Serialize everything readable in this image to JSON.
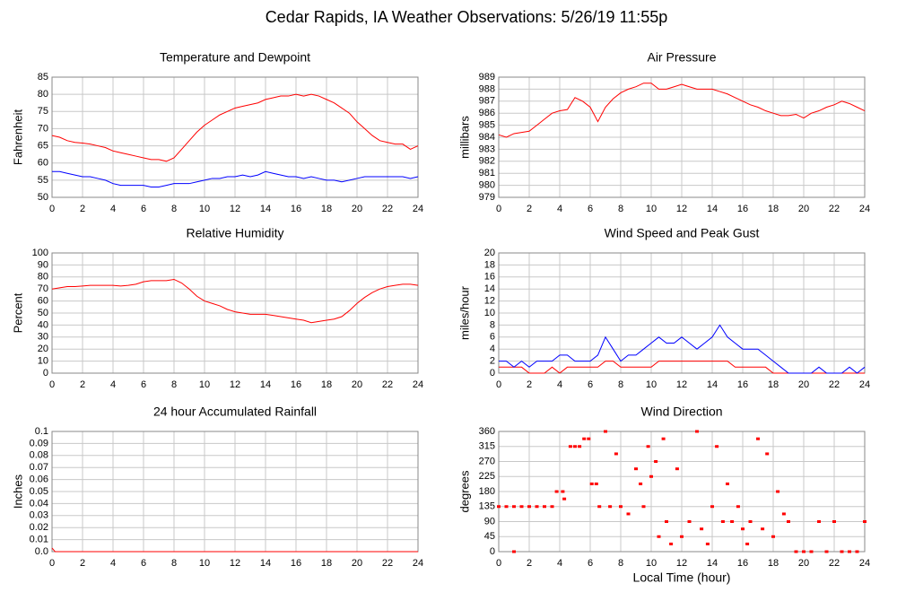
{
  "title": "Cedar Rapids, IA Weather Observations: 5/26/19 11:55p",
  "chart_data": [
    {
      "type": "line",
      "title": "Temperature and Dewpoint",
      "ylabel": "Fahrenheit",
      "xlim": [
        0,
        24
      ],
      "xticks": [
        0,
        2,
        4,
        6,
        8,
        10,
        12,
        14,
        16,
        18,
        20,
        22,
        24
      ],
      "ylim": [
        50,
        85
      ],
      "yticks": [
        50,
        55,
        60,
        65,
        70,
        75,
        80,
        85
      ],
      "grid": true,
      "x": [
        0,
        0.5,
        1,
        1.5,
        2,
        2.5,
        3,
        3.5,
        4,
        4.5,
        5,
        5.5,
        6,
        6.5,
        7,
        7.5,
        8,
        8.5,
        9,
        9.5,
        10,
        10.5,
        11,
        11.5,
        12,
        12.5,
        13,
        13.5,
        14,
        14.5,
        15,
        15.5,
        16,
        16.5,
        17,
        17.5,
        18,
        18.5,
        19,
        19.5,
        20,
        20.5,
        21,
        21.5,
        22,
        22.5,
        23,
        23.5,
        24
      ],
      "series": [
        {
          "color": "#ff0000",
          "values": [
            68,
            67.5,
            66.5,
            66,
            65.8,
            65.5,
            65,
            64.5,
            63.5,
            63,
            62.5,
            62,
            61.5,
            61,
            61,
            60.5,
            61.5,
            64,
            66.5,
            69,
            71,
            72.5,
            74,
            75,
            76,
            76.5,
            77,
            77.5,
            78.5,
            79,
            79.5,
            79.5,
            80,
            79.5,
            80,
            79.5,
            78.5,
            77.5,
            76,
            74.5,
            72,
            70,
            68,
            66.5,
            66,
            65.5,
            65.5,
            64,
            65
          ]
        },
        {
          "color": "#0000ff",
          "values": [
            57.5,
            57.5,
            57,
            56.5,
            56,
            56,
            55.5,
            55,
            54,
            53.5,
            53.5,
            53.5,
            53.5,
            53,
            53,
            53.5,
            54,
            54,
            54,
            54.5,
            55,
            55.5,
            55.5,
            56,
            56,
            56.5,
            56,
            56.5,
            57.5,
            57,
            56.5,
            56,
            56,
            55.5,
            56,
            55.5,
            55,
            55,
            54.5,
            55,
            55.5,
            56,
            56,
            56,
            56,
            56,
            56,
            55.5,
            56
          ]
        }
      ]
    },
    {
      "type": "line",
      "title": "Air Pressure",
      "ylabel": "millibars",
      "xlim": [
        0,
        24
      ],
      "xticks": [
        0,
        2,
        4,
        6,
        8,
        10,
        12,
        14,
        16,
        18,
        20,
        22,
        24
      ],
      "ylim": [
        979,
        989
      ],
      "yticks": [
        979,
        980,
        981,
        982,
        983,
        984,
        985,
        986,
        987,
        988,
        989
      ],
      "grid": true,
      "x": [
        0,
        0.5,
        1,
        1.5,
        2,
        2.5,
        3,
        3.5,
        4,
        4.5,
        5,
        5.5,
        6,
        6.5,
        7,
        7.5,
        8,
        8.5,
        9,
        9.5,
        10,
        10.5,
        11,
        11.5,
        12,
        12.5,
        13,
        13.5,
        14,
        14.5,
        15,
        15.5,
        16,
        16.5,
        17,
        17.5,
        18,
        18.5,
        19,
        19.5,
        20,
        20.5,
        21,
        21.5,
        22,
        22.5,
        23,
        23.5,
        24
      ],
      "series": [
        {
          "color": "#ff0000",
          "values": [
            984.2,
            984,
            984.3,
            984.4,
            984.5,
            985,
            985.5,
            986,
            986.2,
            986.3,
            987.3,
            987,
            986.5,
            985.3,
            986.5,
            987.2,
            987.7,
            988,
            988.2,
            988.5,
            988.5,
            988,
            988,
            988.2,
            988.4,
            988.2,
            988,
            988,
            988,
            987.8,
            987.6,
            987.3,
            987,
            986.7,
            986.5,
            986.2,
            986,
            985.8,
            985.8,
            985.9,
            985.6,
            986,
            986.2,
            986.5,
            986.7,
            987,
            986.8,
            986.5,
            986.2
          ]
        }
      ]
    },
    {
      "type": "line",
      "title": "Relative Humidity",
      "ylabel": "Percent",
      "xlim": [
        0,
        24
      ],
      "xticks": [
        0,
        2,
        4,
        6,
        8,
        10,
        12,
        14,
        16,
        18,
        20,
        22,
        24
      ],
      "ylim": [
        0,
        100
      ],
      "yticks": [
        0,
        10,
        20,
        30,
        40,
        50,
        60,
        70,
        80,
        90,
        100
      ],
      "grid": true,
      "x": [
        0,
        0.5,
        1,
        1.5,
        2,
        2.5,
        3,
        3.5,
        4,
        4.5,
        5,
        5.5,
        6,
        6.5,
        7,
        7.5,
        8,
        8.5,
        9,
        9.5,
        10,
        10.5,
        11,
        11.5,
        12,
        12.5,
        13,
        13.5,
        14,
        14.5,
        15,
        15.5,
        16,
        16.5,
        17,
        17.5,
        18,
        18.5,
        19,
        19.5,
        20,
        20.5,
        21,
        21.5,
        22,
        22.5,
        23,
        23.5,
        24
      ],
      "series": [
        {
          "color": "#ff0000",
          "values": [
            70,
            71,
            72,
            72,
            72.5,
            73,
            73,
            73,
            73,
            72.5,
            73,
            74,
            76,
            77,
            77,
            77,
            78,
            75,
            70,
            64,
            60,
            58,
            56,
            53,
            51,
            50,
            49,
            49,
            49,
            48,
            47,
            46,
            45,
            44,
            42,
            43,
            44,
            45,
            47,
            52,
            58,
            63,
            67,
            70,
            72,
            73,
            74,
            74,
            73
          ]
        }
      ]
    },
    {
      "type": "line",
      "title": "Wind Speed and Peak Gust",
      "ylabel": "miles/hour",
      "xlim": [
        0,
        24
      ],
      "xticks": [
        0,
        2,
        4,
        6,
        8,
        10,
        12,
        14,
        16,
        18,
        20,
        22,
        24
      ],
      "ylim": [
        0,
        20
      ],
      "yticks": [
        0,
        2,
        4,
        6,
        8,
        10,
        12,
        14,
        16,
        18,
        20
      ],
      "grid": true,
      "x": [
        0,
        0.5,
        1,
        1.5,
        2,
        2.5,
        3,
        3.5,
        4,
        4.5,
        5,
        5.5,
        6,
        6.5,
        7,
        7.5,
        8,
        8.5,
        9,
        9.5,
        10,
        10.5,
        11,
        11.5,
        12,
        12.5,
        13,
        13.5,
        14,
        14.5,
        15,
        15.5,
        16,
        16.5,
        17,
        17.5,
        18,
        18.5,
        19,
        19.5,
        20,
        20.5,
        21,
        21.5,
        22,
        22.5,
        23,
        23.5,
        24
      ],
      "series": [
        {
          "color": "#ff0000",
          "values": [
            1,
            1,
            1,
            1,
            0,
            0,
            0,
            1,
            0,
            1,
            1,
            1,
            1,
            1,
            2,
            2,
            1,
            1,
            1,
            1,
            1,
            2,
            2,
            2,
            2,
            2,
            2,
            2,
            2,
            2,
            2,
            1,
            1,
            1,
            1,
            1,
            0,
            0,
            0,
            0,
            0,
            0,
            0,
            0,
            0,
            0,
            0,
            0,
            0
          ]
        },
        {
          "color": "#0000ff",
          "values": [
            2,
            2,
            1,
            2,
            1,
            2,
            2,
            2,
            3,
            3,
            2,
            2,
            2,
            3,
            6,
            4,
            2,
            3,
            3,
            4,
            5,
            6,
            5,
            5,
            6,
            5,
            4,
            5,
            6,
            8,
            6,
            5,
            4,
            4,
            4,
            3,
            2,
            1,
            0,
            0,
            0,
            0,
            1,
            0,
            0,
            0,
            1,
            0,
            1
          ]
        }
      ]
    },
    {
      "type": "line",
      "title": "24 hour Accumulated Rainfall",
      "ylabel": "Inches",
      "xlim": [
        0,
        24
      ],
      "xticks": [
        0,
        2,
        4,
        6,
        8,
        10,
        12,
        14,
        16,
        18,
        20,
        22,
        24
      ],
      "ylim": [
        0,
        0.1
      ],
      "yticks": [
        {
          "value": 0,
          "label": "0.0"
        },
        0.01,
        0.02,
        0.03,
        0.04,
        0.05,
        0.06,
        0.07,
        0.08,
        0.09,
        0.1
      ],
      "grid": true,
      "x": [
        0,
        0.2,
        24
      ],
      "series": [
        {
          "color": "#ff0000",
          "values": [
            0.003,
            0,
            0
          ]
        }
      ]
    },
    {
      "type": "scatter",
      "title": "Wind Direction",
      "ylabel": "degrees",
      "xlabel": "Local Time (hour)",
      "xlim": [
        0,
        24
      ],
      "xticks": [
        0,
        2,
        4,
        6,
        8,
        10,
        12,
        14,
        16,
        18,
        20,
        22,
        24
      ],
      "ylim": [
        0,
        360
      ],
      "yticks": [
        0,
        45,
        90,
        135,
        180,
        225,
        270,
        315,
        360
      ],
      "grid": true,
      "x": [
        0,
        0.5,
        1,
        1.5,
        2,
        2.5,
        3,
        3.5,
        1,
        3.8,
        4.2,
        4.3,
        4.7,
        5,
        5.3,
        5.6,
        5.9,
        6.1,
        6.4,
        6.6,
        7,
        7.3,
        7.7,
        8,
        8.5,
        9,
        9.3,
        9.5,
        9.8,
        10,
        10.3,
        10.5,
        10.8,
        11,
        11.3,
        11.7,
        12,
        12.5,
        13,
        13.3,
        13.7,
        14,
        14.3,
        14.7,
        15,
        15.3,
        15.7,
        16,
        16.3,
        16.5,
        17,
        17.3,
        17.6,
        18,
        18.3,
        18.7,
        19,
        19.5,
        20,
        20.5,
        21,
        21.5,
        22,
        22.5,
        23,
        23.5,
        24
      ],
      "series": [
        {
          "color": "#ff0000",
          "values": [
            135,
            135,
            135,
            135,
            135,
            135,
            135,
            135,
            0,
            180,
            180,
            158,
            315,
            315,
            315,
            338,
            338,
            203,
            203,
            135,
            360,
            135,
            293,
            135,
            113,
            248,
            203,
            135,
            315,
            225,
            270,
            45,
            338,
            90,
            23,
            248,
            45,
            90,
            360,
            68,
            23,
            135,
            315,
            90,
            203,
            90,
            135,
            68,
            23,
            90,
            338,
            68,
            293,
            45,
            180,
            113,
            90,
            0,
            0,
            0,
            90,
            0,
            90,
            0,
            0,
            0,
            90
          ]
        }
      ]
    }
  ]
}
